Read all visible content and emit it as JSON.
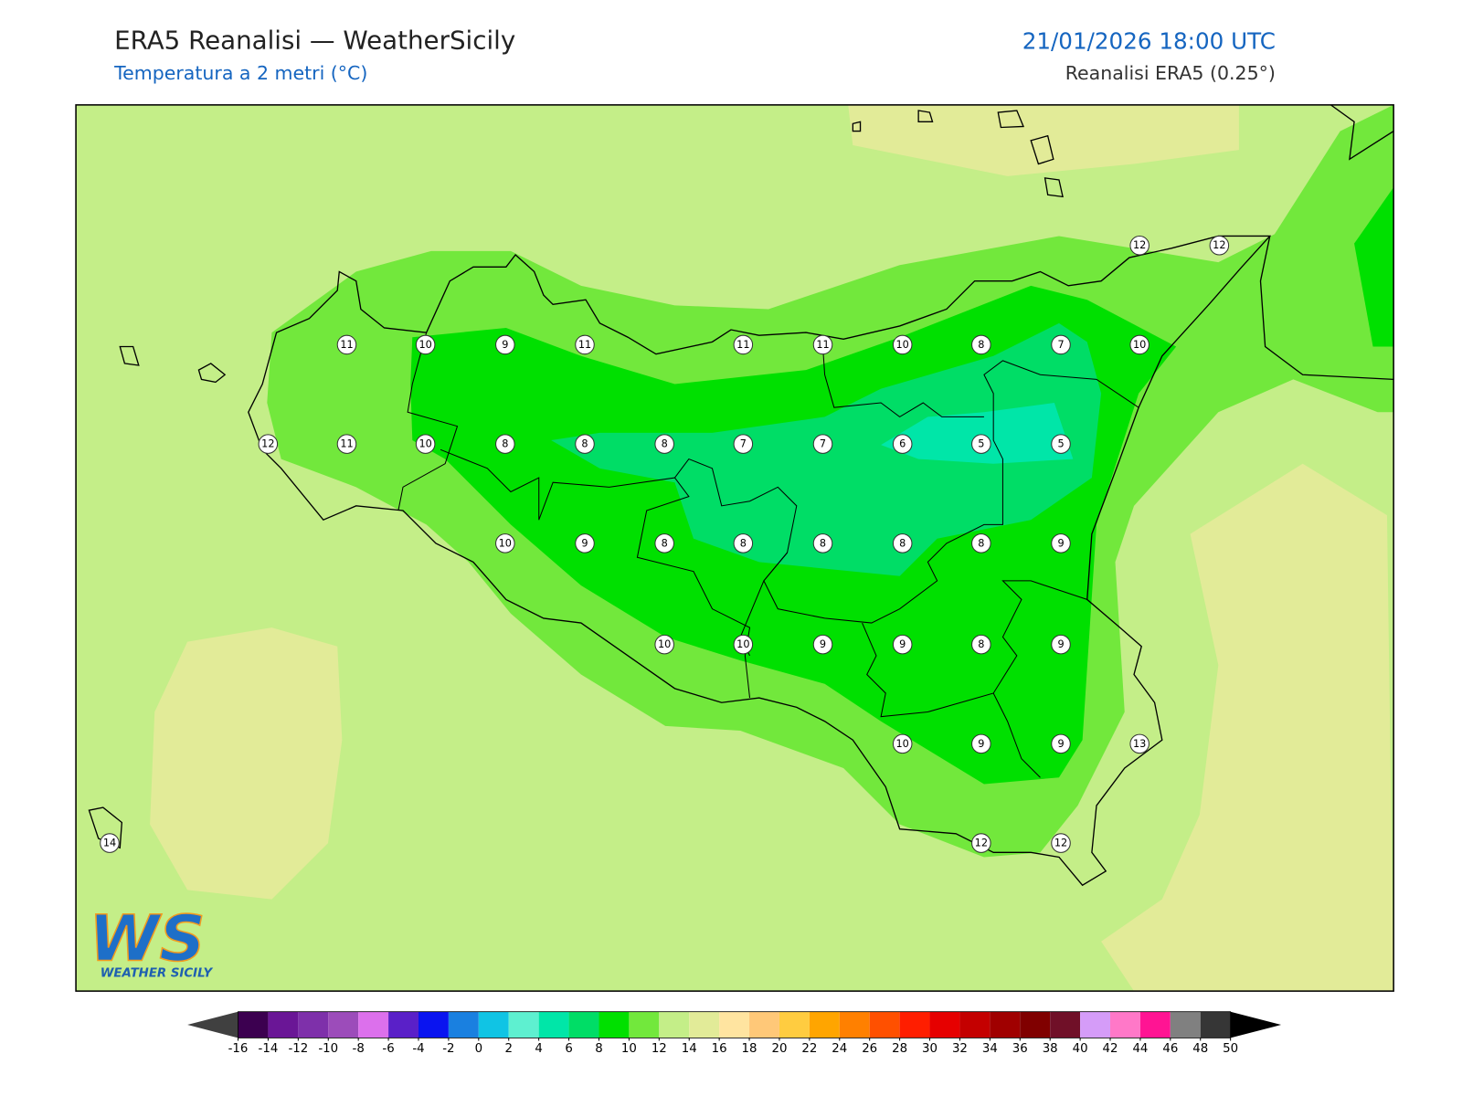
{
  "header": {
    "title": "ERA5 Reanalisi — WeatherSicily",
    "subtitle": "Temperatura a 2 metri (°C)",
    "datetime": "21/01/2026 18:00 UTC",
    "source": "Reanalisi ERA5 (0.25°)"
  },
  "stations": [
    12,
    12,
    11,
    10,
    9,
    11,
    11,
    11,
    10,
    8,
    7,
    10,
    12,
    11,
    10,
    8,
    8,
    8,
    7,
    7,
    6,
    5,
    5,
    10,
    9,
    8,
    8,
    8,
    8,
    8,
    9,
    10,
    10,
    9,
    9,
    8,
    9,
    10,
    9,
    9,
    13,
    14,
    12,
    12
  ],
  "logo": {
    "mark": "WS",
    "text": "WEATHER SICILY"
  },
  "colorbar": {
    "ticks": [
      -16,
      -14,
      -12,
      -10,
      -8,
      -6,
      -4,
      -2,
      0,
      2,
      4,
      6,
      8,
      10,
      12,
      14,
      16,
      18,
      20,
      22,
      24,
      26,
      28,
      30,
      32,
      34,
      36,
      38,
      40,
      42,
      44,
      46,
      48,
      50
    ],
    "colors": [
      "#3c0050",
      "#6a1696",
      "#7e30aa",
      "#9c4cba",
      "#dc70ec",
      "#5a20c8",
      "#0a14f0",
      "#1a80e0",
      "#10c4e4",
      "#5ef0d0",
      "#00e6a8",
      "#00dd66",
      "#00e000",
      "#72e83c",
      "#c4ee88",
      "#e2eb98",
      "#ffe4a0",
      "#ffc878",
      "#ffcc40",
      "#ffa500",
      "#ff8000",
      "#ff5000",
      "#ff1e00",
      "#e60000",
      "#c40000",
      "#a00000",
      "#800000",
      "#701028",
      "#d59cf8",
      "#ff78c8",
      "#ff1493",
      "#808080",
      "#363636"
    ],
    "under_color": "#404040",
    "over_color": "#000000"
  }
}
